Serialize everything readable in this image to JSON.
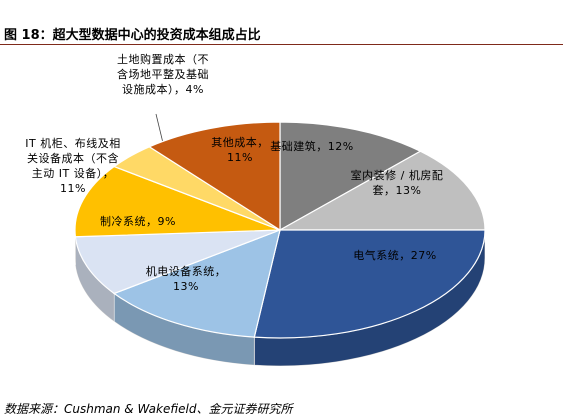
{
  "chart_data": {
    "type": "pie",
    "title": "图 18：超大型数据中心的投资成本组成占比",
    "source": "数据来源：Cushman & Wakefield、金元证券研究所",
    "categories": [
      "基础建筑，",
      "室内装修 / 机房配套，",
      "电气系统，",
      "机电设备系统，",
      "制冷系统，",
      "IT 机柜、布线及相关设备成本（不含主动 IT 设备），",
      "土地购置成本（不含场地平整及基础设施成本），",
      "其他成本，"
    ],
    "values": [
      12,
      13,
      27,
      13,
      9,
      11,
      4,
      11
    ],
    "value_labels": [
      "12%",
      "13%",
      "27%",
      "13%",
      "9%",
      "11%",
      "4%",
      "11%"
    ],
    "colors": [
      "#7f7f7f",
      "#bfbfbf",
      "#2f5597",
      "#9dc3e6",
      "#dae3f3",
      "#ffc000",
      "#ffd966",
      "#c55a11"
    ]
  }
}
